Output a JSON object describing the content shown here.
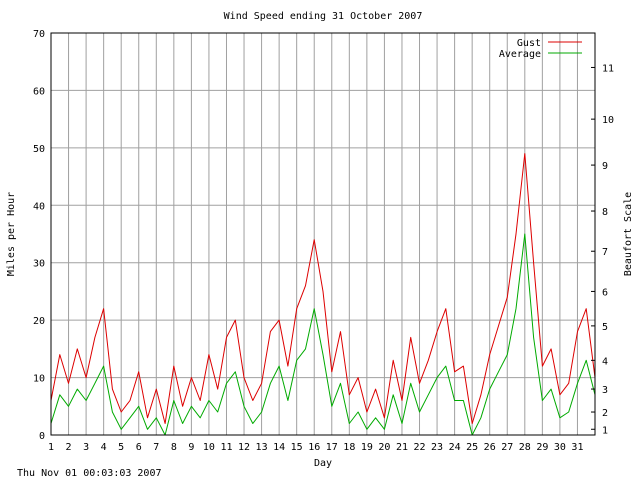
{
  "footer_timestamp": "Thu Nov 01 00:03:03 2007",
  "chart_data": {
    "type": "line",
    "title": "Wind Speed ending 31 October 2007",
    "xlabel": "Day",
    "ylabel": "Miles per Hour",
    "y2label": "Beaufort Scale",
    "xlim": [
      1,
      32
    ],
    "ylim": [
      0,
      70
    ],
    "y_ticks": [
      0,
      10,
      20,
      30,
      40,
      50,
      60,
      70
    ],
    "x_ticks": [
      1,
      2,
      3,
      4,
      5,
      6,
      7,
      8,
      9,
      10,
      11,
      12,
      13,
      14,
      15,
      16,
      17,
      18,
      19,
      20,
      21,
      22,
      23,
      24,
      25,
      26,
      27,
      28,
      29,
      30,
      31
    ],
    "beaufort_ticks": [
      {
        "label": "1",
        "mph": 1
      },
      {
        "label": "2",
        "mph": 4
      },
      {
        "label": "3",
        "mph": 8
      },
      {
        "label": "4",
        "mph": 13
      },
      {
        "label": "5",
        "mph": 19
      },
      {
        "label": "6",
        "mph": 25
      },
      {
        "label": "7",
        "mph": 32
      },
      {
        "label": "8",
        "mph": 39
      },
      {
        "label": "9",
        "mph": 47
      },
      {
        "label": "10",
        "mph": 55
      },
      {
        "label": "11",
        "mph": 64
      }
    ],
    "grid": true,
    "legend_position": "top-right",
    "series": [
      {
        "name": "Gust",
        "color": "#dd0000",
        "x": [
          1,
          1.5,
          2,
          2.5,
          3,
          3.5,
          4,
          4.5,
          5,
          5.5,
          6,
          6.5,
          7,
          7.5,
          8,
          8.5,
          9,
          9.5,
          10,
          10.5,
          11,
          11.5,
          12,
          12.5,
          13,
          13.5,
          14,
          14.5,
          15,
          15.5,
          16,
          16.5,
          17,
          17.5,
          18,
          18.5,
          19,
          19.5,
          20,
          20.5,
          21,
          21.5,
          22,
          22.5,
          23,
          23.5,
          24,
          24.5,
          25,
          25.5,
          26,
          26.5,
          27,
          27.5,
          28,
          28.5,
          29,
          29.5,
          30,
          30.5,
          31,
          31.5,
          32
        ],
        "values": [
          6,
          14,
          9,
          15,
          10,
          17,
          22,
          8,
          4,
          6,
          11,
          3,
          8,
          2,
          12,
          5,
          10,
          6,
          14,
          8,
          17,
          20,
          10,
          6,
          9,
          18,
          20,
          12,
          22,
          26,
          34,
          25,
          11,
          18,
          7,
          10,
          4,
          8,
          3,
          13,
          6,
          17,
          9,
          13,
          18,
          22,
          11,
          12,
          2,
          7,
          14,
          19,
          24,
          35,
          49,
          30,
          12,
          15,
          7,
          9,
          18,
          22,
          10
        ]
      },
      {
        "name": "Average",
        "color": "#00aa00",
        "x": [
          1,
          1.5,
          2,
          2.5,
          3,
          3.5,
          4,
          4.5,
          5,
          5.5,
          6,
          6.5,
          7,
          7.5,
          8,
          8.5,
          9,
          9.5,
          10,
          10.5,
          11,
          11.5,
          12,
          12.5,
          13,
          13.5,
          14,
          14.5,
          15,
          15.5,
          16,
          16.5,
          17,
          17.5,
          18,
          18.5,
          19,
          19.5,
          20,
          20.5,
          21,
          21.5,
          22,
          22.5,
          23,
          23.5,
          24,
          24.5,
          25,
          25.5,
          26,
          26.5,
          27,
          27.5,
          28,
          28.5,
          29,
          29.5,
          30,
          30.5,
          31,
          31.5,
          32
        ],
        "values": [
          2,
          7,
          5,
          8,
          6,
          9,
          12,
          4,
          1,
          3,
          5,
          1,
          3,
          0,
          6,
          2,
          5,
          3,
          6,
          4,
          9,
          11,
          5,
          2,
          4,
          9,
          12,
          6,
          13,
          15,
          22,
          14,
          5,
          9,
          2,
          4,
          1,
          3,
          1,
          7,
          2,
          9,
          4,
          7,
          10,
          12,
          6,
          6,
          0,
          3,
          8,
          11,
          14,
          22,
          35,
          17,
          6,
          8,
          3,
          4,
          9,
          13,
          7
        ]
      }
    ]
  }
}
